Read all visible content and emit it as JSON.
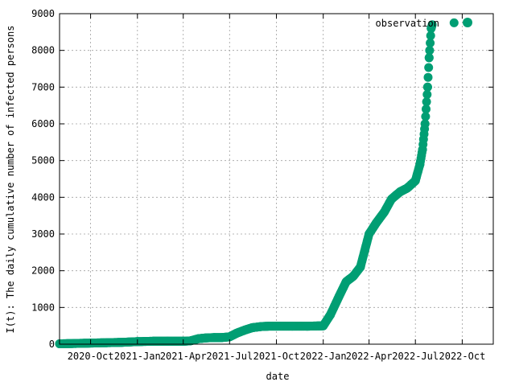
{
  "chart_data": {
    "type": "scatter",
    "xlabel": "date",
    "ylabel": "I(t): The daily cumulative number of infected persons",
    "x_tick_labels": [
      "2020-Oct",
      "2021-Jan",
      "2021-Apr",
      "2021-Jul",
      "2021-Oct",
      "2022-Jan",
      "2022-Apr",
      "2022-Jul",
      "2022-Oct"
    ],
    "y_ticks": [
      0,
      1000,
      2000,
      3000,
      4000,
      5000,
      6000,
      7000,
      8000,
      9000
    ],
    "ylim": [
      0,
      9000
    ],
    "xlim": [
      "2020-08-01",
      "2022-12-01"
    ],
    "grid": true,
    "legend": {
      "label": "observation",
      "position": "top-right"
    },
    "marker_color": "#009e73",
    "series": [
      {
        "name": "observation",
        "points": [
          [
            "2020-08-01",
            10
          ],
          [
            "2020-09-01",
            20
          ],
          [
            "2020-10-01",
            30
          ],
          [
            "2020-11-01",
            40
          ],
          [
            "2020-12-01",
            50
          ],
          [
            "2021-01-01",
            70
          ],
          [
            "2021-02-01",
            80
          ],
          [
            "2021-03-01",
            80
          ],
          [
            "2021-04-01",
            80
          ],
          [
            "2021-04-15",
            90
          ],
          [
            "2021-05-01",
            150
          ],
          [
            "2021-05-15",
            170
          ],
          [
            "2021-06-01",
            180
          ],
          [
            "2021-06-15",
            180
          ],
          [
            "2021-07-01",
            200
          ],
          [
            "2021-07-15",
            300
          ],
          [
            "2021-08-01",
            390
          ],
          [
            "2021-08-15",
            450
          ],
          [
            "2021-09-01",
            480
          ],
          [
            "2021-09-15",
            490
          ],
          [
            "2021-10-01",
            490
          ],
          [
            "2021-11-01",
            490
          ],
          [
            "2021-12-01",
            490
          ],
          [
            "2022-01-01",
            500
          ],
          [
            "2022-01-15",
            800
          ],
          [
            "2022-02-01",
            1300
          ],
          [
            "2022-02-15",
            1700
          ],
          [
            "2022-03-01",
            1850
          ],
          [
            "2022-03-15",
            2100
          ],
          [
            "2022-04-01",
            3000
          ],
          [
            "2022-04-15",
            3300
          ],
          [
            "2022-05-01",
            3600
          ],
          [
            "2022-05-15",
            3950
          ],
          [
            "2022-06-01",
            4150
          ],
          [
            "2022-06-15",
            4250
          ],
          [
            "2022-07-01",
            4450
          ],
          [
            "2022-07-10",
            4900
          ],
          [
            "2022-07-15",
            5300
          ],
          [
            "2022-07-20",
            6000
          ],
          [
            "2022-07-25",
            7000
          ],
          [
            "2022-07-28",
            7800
          ],
          [
            "2022-08-01",
            8600
          ],
          [
            "2022-08-03",
            8700
          ],
          [
            "2022-09-15",
            8750
          ]
        ]
      }
    ]
  }
}
